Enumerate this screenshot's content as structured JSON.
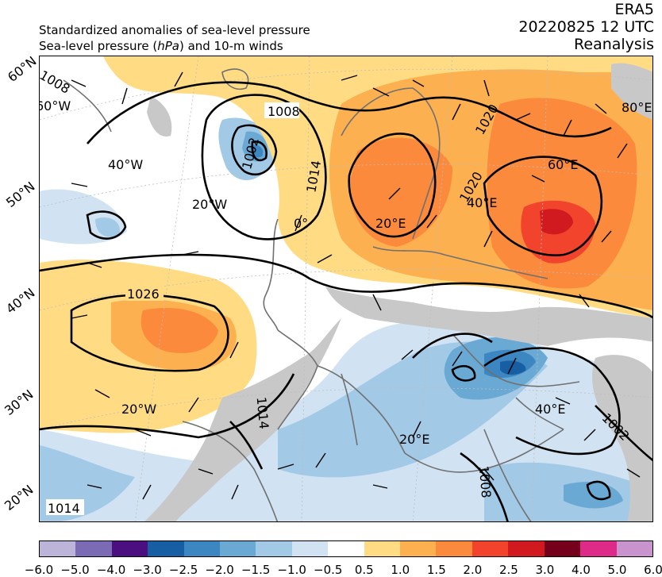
{
  "header": {
    "line1": "Standardized anomalies of sea-level pressure",
    "line2_pre": "Sea-level pressure (",
    "line2_unit": "hPa",
    "line2_post": ") and 10-m winds",
    "dataset": "ERA5",
    "datetime": "20220825 12 UTC",
    "product": "Reanalysis"
  },
  "map": {
    "lat_labels": [
      "60°N",
      "50°N",
      "40°N",
      "30°N",
      "20°N"
    ],
    "lon_labels": [
      "60°W",
      "40°W",
      "20°W",
      "0°",
      "20°E",
      "40°E",
      "60°E",
      "80°E",
      "20°W",
      "20°E",
      "40°E"
    ],
    "contour_labels": [
      "1008",
      "1008",
      "1002",
      "1014",
      "1020",
      "1020",
      "1026",
      "1014",
      "1002",
      "1008",
      "1014"
    ],
    "colors": {
      "land": "#c8c8c8",
      "coast": "#707070",
      "contour": "#000000"
    }
  },
  "colorbar": {
    "levels": [
      "−6.0",
      "−5.0",
      "−4.0",
      "−3.0",
      "−2.5",
      "−2.0",
      "−1.5",
      "−1.0",
      "−0.5",
      "0.5",
      "1.0",
      "1.5",
      "2.0",
      "2.5",
      "3.0",
      "4.0",
      "5.0",
      "6.0"
    ],
    "colors": [
      "#bcb4d9",
      "#7b6bb5",
      "#4b0f7f",
      "#175ea3",
      "#3c86c1",
      "#6aa9d4",
      "#a2c9e6",
      "#d1e3f3",
      "#ffffff",
      "#ffdc84",
      "#fdb04f",
      "#fb8a3d",
      "#f2442c",
      "#d01a20",
      "#75001c",
      "#de2b8a",
      "#c993cd"
    ]
  }
}
